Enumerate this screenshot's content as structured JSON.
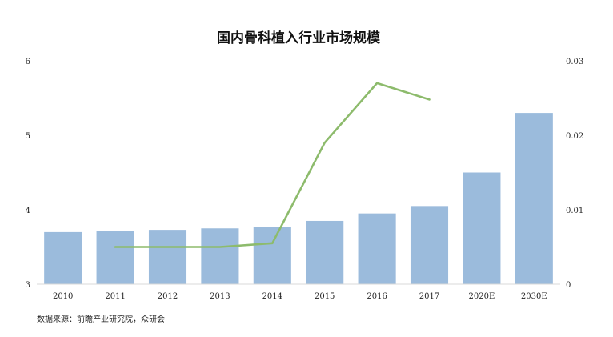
{
  "chart_data": {
    "type": "bar",
    "title": "国内骨科植入行业市场规模",
    "source": "数据来源：前瞻产业研究院，众研会",
    "categories": [
      "2010",
      "2011",
      "2012",
      "2013",
      "2014",
      "2015",
      "2016",
      "2017",
      "2020E",
      "2030E"
    ],
    "series": [
      {
        "type": "bar",
        "axis": "left",
        "color": "#9bbbdc",
        "values": [
          3.7,
          3.72,
          3.73,
          3.75,
          3.77,
          3.85,
          3.95,
          4.05,
          4.5,
          5.3
        ]
      },
      {
        "type": "line",
        "axis": "right",
        "color": "#8dbb6c",
        "values": [
          null,
          0.005,
          0.005,
          0.005,
          0.0055,
          0.019,
          0.027,
          0.0248,
          null,
          null
        ]
      }
    ],
    "ylim": [
      3,
      6
    ],
    "yticks": [
      "3",
      "4",
      "5",
      "6"
    ],
    "y2lim": [
      0,
      0.03
    ],
    "y2ticks": [
      "0",
      "0.01",
      "0.02",
      "0.03"
    ],
    "grid": false,
    "legend": "none"
  }
}
